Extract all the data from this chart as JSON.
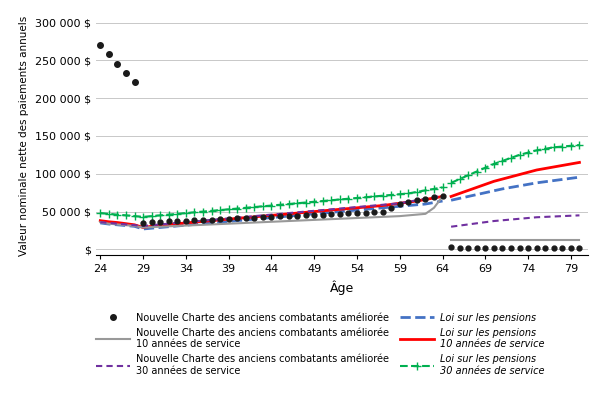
{
  "xlabel": "Âge",
  "ylabel": "Valeur nominale nette des paiements annuels",
  "yticks": [
    0,
    50000,
    100000,
    150000,
    200000,
    250000,
    300000
  ],
  "ytick_labels": [
    "$",
    "50 000 $",
    "100 000 $",
    "150 000 $",
    "200 000 $",
    "250 000 $",
    "300 000 $"
  ],
  "xticks": [
    24,
    29,
    34,
    39,
    44,
    49,
    54,
    59,
    64,
    69,
    74,
    79
  ],
  "xlim": [
    23.5,
    81
  ],
  "ylim": [
    -8000,
    308000
  ],
  "ages_pre65": [
    24,
    25,
    26,
    27,
    28,
    29,
    30,
    31,
    32,
    33,
    34,
    35,
    36,
    37,
    38,
    39,
    40,
    41,
    42,
    43,
    44,
    45,
    46,
    47,
    48,
    49,
    50,
    51,
    52,
    53,
    54,
    55,
    56,
    57,
    58,
    59,
    60,
    61,
    62,
    63,
    64
  ],
  "ages_post65": [
    65,
    66,
    67,
    68,
    69,
    70,
    71,
    72,
    73,
    74,
    75,
    76,
    77,
    78,
    79,
    80
  ],
  "ncac_dots_spike_x": [
    24,
    25,
    26,
    27,
    28
  ],
  "ncac_dots_spike_y": [
    270000,
    258000,
    245000,
    233000,
    221000
  ],
  "ncac_dots_pre65_x": [
    29,
    30,
    31,
    32,
    33,
    34,
    35,
    36,
    37,
    38,
    39,
    40,
    41,
    42,
    43,
    44,
    45,
    46,
    47,
    48,
    49,
    50,
    51,
    52,
    53,
    54,
    55,
    56,
    57,
    58,
    59,
    60,
    61,
    62,
    63,
    64
  ],
  "ncac_dots_pre65_y": [
    35000,
    36000,
    36500,
    37000,
    37500,
    38000,
    38500,
    39000,
    39500,
    40000,
    40500,
    41000,
    41500,
    42000,
    42500,
    43000,
    43500,
    44000,
    44500,
    45000,
    45500,
    46000,
    46500,
    47000,
    47500,
    48000,
    48500,
    49000,
    49500,
    55000,
    60000,
    63000,
    65000,
    67000,
    69000,
    71000
  ],
  "ncac_dots_post65_x": [
    65,
    66,
    67,
    68,
    69,
    70,
    71,
    72,
    73,
    74,
    75,
    76,
    77,
    78,
    79,
    80
  ],
  "ncac_dots_post65_y": [
    2500,
    1500,
    1500,
    1500,
    1500,
    1500,
    1500,
    1500,
    1500,
    1500,
    1500,
    1500,
    1500,
    1500,
    1500,
    1500
  ],
  "ncac_10yr_pre65_x": [
    24,
    25,
    26,
    27,
    28,
    29,
    30,
    31,
    32,
    33,
    34,
    35,
    36,
    37,
    38,
    39,
    40,
    41,
    42,
    43,
    44,
    45,
    46,
    47,
    48,
    49,
    50,
    51,
    52,
    53,
    54,
    55,
    56,
    57,
    58,
    59,
    60,
    61,
    62,
    63,
    64
  ],
  "ncac_10yr_pre65_y": [
    36000,
    34000,
    33000,
    32000,
    31000,
    29000,
    29500,
    30000,
    30500,
    31000,
    31500,
    32000,
    32500,
    33000,
    33500,
    34000,
    34500,
    35000,
    35500,
    36000,
    36500,
    37000,
    37500,
    38000,
    38500,
    39000,
    39500,
    40000,
    40500,
    41000,
    41500,
    42000,
    42500,
    43000,
    43500,
    44000,
    45000,
    46000,
    47000,
    55000,
    70000
  ],
  "ncac_10yr_post65_x": [
    65,
    66,
    67,
    68,
    69,
    70,
    71,
    72,
    73,
    74,
    75,
    76,
    77,
    78,
    79,
    80
  ],
  "ncac_10yr_post65_y": [
    13000,
    13000,
    13000,
    13000,
    13000,
    13000,
    13000,
    13000,
    13000,
    13000,
    13000,
    13000,
    13000,
    13000,
    13000,
    13000
  ],
  "ncac_30yr_pre65_x": [
    24,
    25,
    26,
    27,
    28,
    29,
    30,
    31,
    32,
    33,
    34,
    35,
    36,
    37,
    38,
    39,
    40,
    41,
    42,
    43,
    44,
    45,
    46,
    47,
    48,
    49,
    50,
    51,
    52,
    53,
    54,
    55,
    56,
    57,
    58,
    59,
    60,
    61,
    62,
    63,
    64
  ],
  "ncac_30yr_pre65_y": [
    36000,
    35000,
    34000,
    33000,
    32000,
    31000,
    32000,
    33000,
    34000,
    35000,
    36000,
    37000,
    38000,
    39000,
    40000,
    41000,
    42000,
    43000,
    44000,
    45000,
    46000,
    47000,
    48000,
    49000,
    50000,
    51000,
    52000,
    53000,
    54000,
    55000,
    56000,
    57000,
    58000,
    59000,
    60000,
    61000,
    63000,
    65000,
    67000,
    69000,
    71000
  ],
  "ncac_30yr_post65_x": [
    65,
    66,
    67,
    68,
    69,
    70,
    71,
    72,
    73,
    74,
    75,
    76,
    77,
    78,
    79,
    80
  ],
  "ncac_30yr_post65_y": [
    30000,
    31500,
    33000,
    34500,
    36000,
    37500,
    38500,
    39500,
    40500,
    41500,
    42500,
    43000,
    43500,
    44000,
    44500,
    45000
  ],
  "pension_base_pre65_x": [
    24,
    25,
    26,
    27,
    28,
    29,
    30,
    31,
    32,
    33,
    34,
    35,
    36,
    37,
    38,
    39,
    40,
    41,
    42,
    43,
    44,
    45,
    46,
    47,
    48,
    49,
    50,
    51,
    52,
    53,
    54,
    55,
    56,
    57,
    58,
    59,
    60,
    61,
    62,
    63,
    64
  ],
  "pension_base_pre65_y": [
    35000,
    33500,
    32500,
    31500,
    30500,
    27000,
    28000,
    29000,
    30000,
    31000,
    32000,
    33000,
    34000,
    35000,
    36000,
    37000,
    38000,
    39000,
    40000,
    41000,
    42000,
    43000,
    44000,
    45000,
    46000,
    47000,
    48000,
    49000,
    50000,
    51000,
    52000,
    53000,
    54000,
    55000,
    56000,
    57000,
    58000,
    59000,
    60000,
    62000,
    64000
  ],
  "pension_base_post65_x": [
    65,
    66,
    67,
    68,
    69,
    70,
    71,
    72,
    73,
    74,
    75,
    76,
    77,
    78,
    79,
    80
  ],
  "pension_base_post65_y": [
    65000,
    67500,
    70000,
    72500,
    75000,
    77500,
    80000,
    82000,
    84000,
    86000,
    88000,
    89500,
    91000,
    92500,
    94000,
    95500
  ],
  "pension_10yr_pre65_x": [
    24,
    25,
    26,
    27,
    28,
    29,
    30,
    31,
    32,
    33,
    34,
    35,
    36,
    37,
    38,
    39,
    40,
    41,
    42,
    43,
    44,
    45,
    46,
    47,
    48,
    49,
    50,
    51,
    52,
    53,
    54,
    55,
    56,
    57,
    58,
    59,
    60,
    61,
    62,
    63,
    64
  ],
  "pension_10yr_pre65_y": [
    38000,
    36500,
    35500,
    34000,
    32500,
    29000,
    30500,
    32000,
    33000,
    34000,
    35000,
    36000,
    37000,
    38000,
    39000,
    40000,
    41000,
    42000,
    43000,
    44000,
    45000,
    46000,
    47000,
    48000,
    49000,
    50000,
    51000,
    52000,
    53000,
    54000,
    55000,
    56000,
    57000,
    58000,
    59500,
    61000,
    62500,
    64000,
    66000,
    68000,
    70000
  ],
  "pension_10yr_post65_x": [
    65,
    66,
    67,
    68,
    69,
    70,
    71,
    72,
    73,
    74,
    75,
    76,
    77,
    78,
    79,
    80
  ],
  "pension_10yr_post65_y": [
    70000,
    74000,
    78000,
    82000,
    86000,
    90000,
    93000,
    96000,
    99000,
    102000,
    105000,
    107000,
    109000,
    111000,
    113000,
    115000
  ],
  "pension_30yr_pre65_x": [
    24,
    25,
    26,
    27,
    28,
    29,
    30,
    31,
    32,
    33,
    34,
    35,
    36,
    37,
    38,
    39,
    40,
    41,
    42,
    43,
    44,
    45,
    46,
    47,
    48,
    49,
    50,
    51,
    52,
    53,
    54,
    55,
    56,
    57,
    58,
    59,
    60,
    61,
    62,
    63,
    64
  ],
  "pension_30yr_pre65_y": [
    48000,
    47000,
    46000,
    45000,
    44000,
    43000,
    44000,
    45000,
    46000,
    47000,
    48000,
    49000,
    50000,
    51000,
    52000,
    53000,
    54000,
    55000,
    56000,
    57000,
    58000,
    59000,
    60000,
    61000,
    62000,
    63000,
    64000,
    65000,
    66000,
    67000,
    68000,
    69000,
    70000,
    71000,
    72000,
    73000,
    74000,
    76000,
    78000,
    80000,
    82000
  ],
  "pension_30yr_post65_x": [
    65,
    66,
    67,
    68,
    69,
    70,
    71,
    72,
    73,
    74,
    75,
    76,
    77,
    78,
    79,
    80
  ],
  "pension_30yr_post65_y": [
    88000,
    93000,
    98000,
    103000,
    108000,
    113000,
    117000,
    121000,
    125000,
    128000,
    131000,
    133000,
    135000,
    136000,
    137000,
    138000
  ],
  "color_ncac_dots": "#1a1a1a",
  "color_ncac_10yr": "#999999",
  "color_ncac_30yr": "#7030a0",
  "color_pension_base": "#4472c4",
  "color_pension_10yr": "#ff0000",
  "color_pension_30yr": "#00b050",
  "bg_color": "#ffffff",
  "grid_color": "#c8c8c8",
  "legend_ncac_dots": "Nouvelle Charte des anciens combatants améliorée",
  "legend_ncac_10yr": "Nouvelle Charte des anciens combatants améliorée\n10 années de service",
  "legend_ncac_30yr": "Nouvelle Charte des anciens combatants améliorée\n30 années de service",
  "legend_pension_base": "Loi sur les pensions",
  "legend_pension_10yr": "Loi sur les pensions\n10 années de service",
  "legend_pension_30yr": "Loi sur les pensions\n30 années de service"
}
